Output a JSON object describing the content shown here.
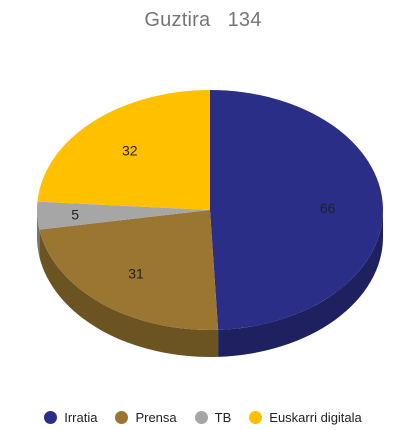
{
  "chart_data": {
    "type": "pie",
    "title": "Guztira",
    "total": 134,
    "slices": [
      {
        "label": "Irratia",
        "value": 66,
        "color": "#2b2e87"
      },
      {
        "label": "Prensa",
        "value": 31,
        "color": "#9a7631"
      },
      {
        "label": "TB",
        "value": 5,
        "color": "#a6a6a6"
      },
      {
        "label": "Euskarri digitala",
        "value": 32,
        "color": "#ffc000"
      }
    ],
    "style": "3d",
    "legend_position": "bottom"
  }
}
